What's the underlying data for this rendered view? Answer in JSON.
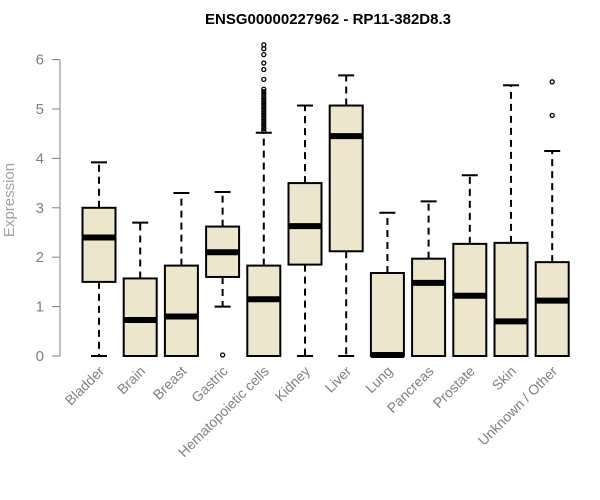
{
  "chart_data": {
    "type": "boxplot",
    "title": "ENSG00000227962 - RP11-382D8.3",
    "xlabel": "",
    "ylabel": "Expression",
    "ylim": [
      0,
      6.2
    ],
    "yticks": [
      0,
      1,
      2,
      3,
      4,
      5,
      6
    ],
    "box_color": "#ede6cc",
    "categories": [
      "Bladder",
      "Brain",
      "Breast",
      "Gastric",
      "Hematopoietic cells",
      "Kidney",
      "Liver",
      "Lung",
      "Pancreas",
      "Prostate",
      "Skin",
      "Unknown / Other"
    ],
    "boxes": [
      {
        "min": 0,
        "q1": 1.5,
        "median": 2.4,
        "q3": 3.0,
        "max": 3.92,
        "outliers": []
      },
      {
        "min": 0,
        "q1": 0,
        "median": 0.73,
        "q3": 1.57,
        "max": 2.7,
        "outliers": []
      },
      {
        "min": 0,
        "q1": 0,
        "median": 0.8,
        "q3": 1.83,
        "max": 3.3,
        "outliers": []
      },
      {
        "min": 1.0,
        "q1": 1.6,
        "median": 2.1,
        "q3": 2.62,
        "max": 3.32,
        "outliers": [
          0.02
        ]
      },
      {
        "min": 0,
        "q1": 0,
        "median": 1.15,
        "q3": 1.83,
        "max": 4.52,
        "outliers": [
          4.55,
          4.6,
          4.65,
          4.7,
          4.75,
          4.8,
          4.85,
          4.9,
          4.95,
          5.0,
          5.05,
          5.1,
          5.15,
          5.2,
          5.25,
          5.3,
          5.35,
          5.4,
          5.6,
          5.8,
          5.93,
          6.1,
          6.22,
          6.3
        ]
      },
      {
        "min": 0,
        "q1": 1.85,
        "median": 2.63,
        "q3": 3.5,
        "max": 5.07,
        "outliers": []
      },
      {
        "min": 0,
        "q1": 2.12,
        "median": 4.45,
        "q3": 5.07,
        "max": 5.68,
        "outliers": []
      },
      {
        "min": 0,
        "q1": 0,
        "median": 0.02,
        "q3": 1.68,
        "max": 2.9,
        "outliers": []
      },
      {
        "min": 0,
        "q1": 0,
        "median": 1.48,
        "q3": 1.97,
        "max": 3.13,
        "outliers": []
      },
      {
        "min": 0,
        "q1": 0,
        "median": 1.22,
        "q3": 2.27,
        "max": 3.66,
        "outliers": []
      },
      {
        "min": 0,
        "q1": 0,
        "median": 0.7,
        "q3": 2.29,
        "max": 5.48,
        "outliers": []
      },
      {
        "min": 0,
        "q1": 0,
        "median": 1.12,
        "q3": 1.9,
        "max": 4.15,
        "outliers": [
          4.87,
          5.55
        ]
      }
    ]
  }
}
